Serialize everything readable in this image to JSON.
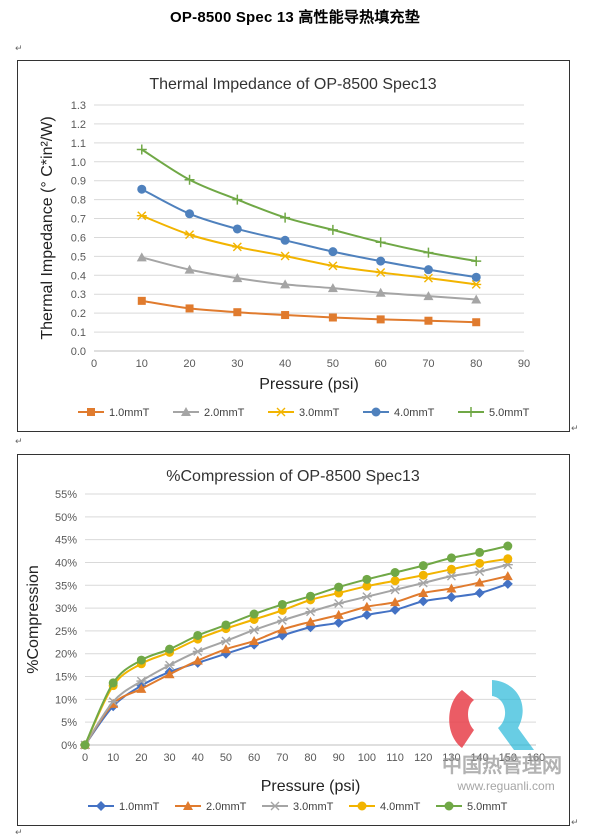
{
  "document": {
    "title": "OP-8500 Spec 13  高性能导热填充垫",
    "para_mark": "↵"
  },
  "chart_data": [
    {
      "type": "line",
      "title": "Thermal Impedance of OP-8500 Spec13",
      "xlabel": "Pressure (psi)",
      "ylabel": "Thermal Impedance (° C*in²/W)",
      "xlim": [
        0,
        90
      ],
      "ylim": [
        0,
        1.3
      ],
      "x_ticks": [
        "0",
        "10",
        "20",
        "30",
        "40",
        "50",
        "60",
        "70",
        "80",
        "90"
      ],
      "y_ticks": [
        "0.0",
        "0.1",
        "0.2",
        "0.3",
        "0.4",
        "0.5",
        "0.6",
        "0.7",
        "0.8",
        "0.9",
        "1.0",
        "1.1",
        "1.2",
        "1.3"
      ],
      "grid": true,
      "legend_position": "bottom",
      "x": [
        10,
        20,
        30,
        40,
        50,
        60,
        70,
        80
      ],
      "series": [
        {
          "name": "1.0mmT",
          "marker": "square",
          "color": "#e07b2e",
          "values": [
            0.265,
            0.225,
            0.205,
            0.19,
            0.177,
            0.167,
            0.16,
            0.152
          ]
        },
        {
          "name": "2.0mmT",
          "marker": "triangle",
          "color": "#a5a5a5",
          "values": [
            0.495,
            0.43,
            0.385,
            0.352,
            0.332,
            0.308,
            0.29,
            0.272
          ]
        },
        {
          "name": "3.0mmT",
          "marker": "star",
          "color": "#f2b400",
          "values": [
            0.715,
            0.615,
            0.55,
            0.502,
            0.45,
            0.415,
            0.385,
            0.352
          ]
        },
        {
          "name": "4.0mmT",
          "marker": "circle",
          "color": "#4f81bd",
          "values": [
            0.855,
            0.725,
            0.645,
            0.585,
            0.525,
            0.475,
            0.43,
            0.39
          ]
        },
        {
          "name": "5.0mmT",
          "marker": "plus",
          "color": "#70a846",
          "values": [
            1.065,
            0.905,
            0.8,
            0.705,
            0.64,
            0.575,
            0.52,
            0.475
          ]
        }
      ]
    },
    {
      "type": "line",
      "title": "%Compression of OP-8500 Spec13",
      "xlabel": "Pressure (psi)",
      "ylabel": "%Compression",
      "xlim": [
        0,
        160
      ],
      "ylim": [
        0,
        55
      ],
      "x_ticks": [
        "0",
        "10",
        "20",
        "30",
        "40",
        "50",
        "60",
        "70",
        "80",
        "90",
        "100",
        "110",
        "120",
        "130",
        "140",
        "150",
        "160"
      ],
      "y_ticks": [
        "0%",
        "5%",
        "10%",
        "15%",
        "20%",
        "25%",
        "30%",
        "35%",
        "40%",
        "45%",
        "50%",
        "55%"
      ],
      "grid": true,
      "legend_position": "bottom",
      "x": [
        0,
        10,
        20,
        30,
        40,
        50,
        60,
        70,
        80,
        90,
        100,
        110,
        120,
        130,
        140,
        150
      ],
      "series": [
        {
          "name": "1.0mmT",
          "marker": "diamond",
          "color": "#4472c4",
          "values": [
            0,
            8.5,
            13,
            16,
            18,
            20,
            22,
            24,
            25.8,
            26.8,
            28.5,
            29.6,
            31.5,
            32.4,
            33.3,
            35.3
          ]
        },
        {
          "name": "2.0mmT",
          "marker": "triangle",
          "color": "#e07b2e",
          "values": [
            0,
            9,
            12.3,
            15.5,
            18.5,
            21,
            22.8,
            25.3,
            27,
            28.5,
            30.3,
            31.3,
            33.3,
            34.3,
            35.6,
            37
          ]
        },
        {
          "name": "3.0mmT",
          "marker": "star",
          "color": "#a5a5a5",
          "values": [
            0,
            9.5,
            14,
            17.5,
            20.5,
            22.8,
            25.2,
            27.3,
            29.2,
            31,
            32.5,
            34,
            35.5,
            37,
            38,
            39.5
          ]
        },
        {
          "name": "4.0mmT",
          "marker": "circle",
          "color": "#f2b400",
          "values": [
            0,
            13,
            17.8,
            20.3,
            23.2,
            25.5,
            27.5,
            29.5,
            31.8,
            33.3,
            34.8,
            36,
            37.2,
            38.5,
            39.8,
            40.8
          ]
        },
        {
          "name": "5.0mmT",
          "marker": "circle",
          "color": "#70a846",
          "values": [
            0,
            13.6,
            18.6,
            21,
            24,
            26.3,
            28.7,
            30.8,
            32.6,
            34.6,
            36.3,
            37.8,
            39.3,
            41,
            42.2,
            43.6
          ]
        }
      ]
    }
  ],
  "watermark": {
    "site_name": "中国热管理网",
    "url": "www.reguanli.com",
    "logo_colors": [
      "#e8404a",
      "#28b8d8"
    ]
  }
}
